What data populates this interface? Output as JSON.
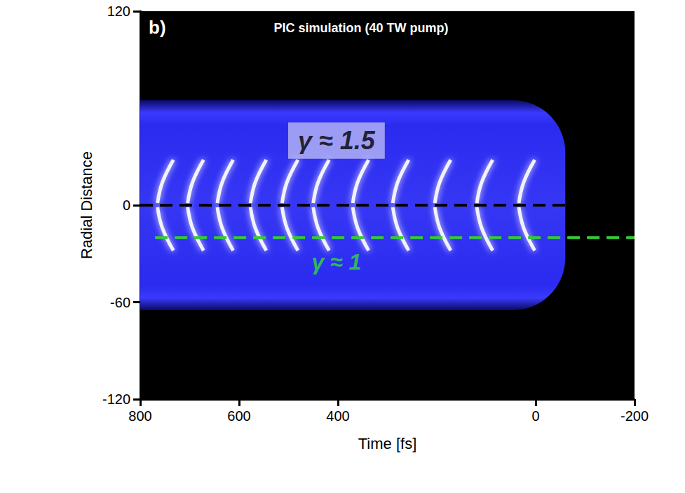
{
  "chart_data": {
    "type": "custom",
    "title": "PIC simulation (40 TW pump)",
    "panel": "b)",
    "x_label": "Time [fs]",
    "y_label": "Radial Distance",
    "xlim": [
      800,
      -200
    ],
    "xticks": [
      800,
      600,
      400,
      0,
      -200
    ],
    "ylim": [
      -120,
      120
    ],
    "yticks": [
      -120,
      -60,
      0,
      120
    ],
    "grid": false,
    "channel": {
      "x": [
        800,
        -60
      ],
      "y": [
        -65,
        65
      ],
      "color": "#2b2bf0"
    },
    "bunches": {
      "x": [
        765,
        704,
        644,
        577,
        513,
        450,
        370,
        289,
        204,
        119,
        34
      ],
      "radius": 28,
      "color": "#ffffff"
    },
    "lines": [
      {
        "y": 0,
        "x": [
          800,
          -200
        ],
        "color": "#000000",
        "line_style": "dashed"
      },
      {
        "y": -20,
        "x": [
          770,
          -200
        ],
        "color": "#33cc33",
        "line_style": "dashed"
      }
    ],
    "annotations": [
      {
        "text": "γ ≈ 1.5",
        "x": 403,
        "y": 40,
        "color": "#000000"
      },
      {
        "text": "γ ≈ 1",
        "x": 403,
        "y": -35,
        "color": "#33dd33"
      }
    ]
  }
}
